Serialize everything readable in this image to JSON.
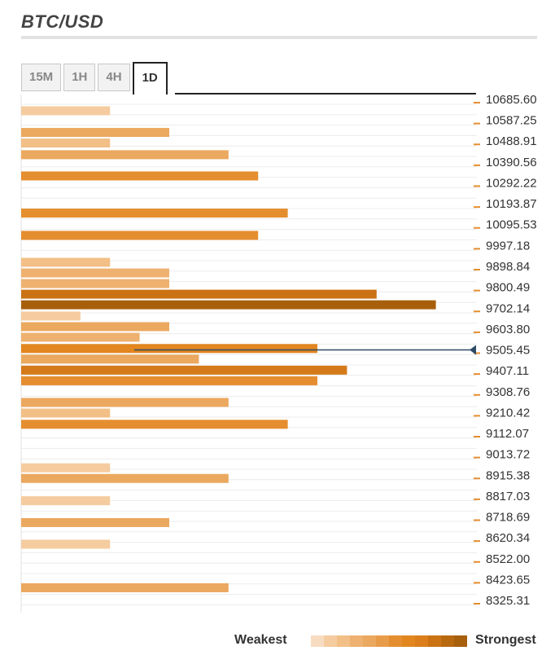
{
  "title": "BTC/USD",
  "tabs": [
    {
      "label": "15M",
      "active": false
    },
    {
      "label": "1H",
      "active": false
    },
    {
      "label": "4H",
      "active": false
    },
    {
      "label": "1D",
      "active": true
    }
  ],
  "legend": {
    "weak_label": "Weakest",
    "strong_label": "Strongest",
    "scale_colors": [
      "#f8dcc2",
      "#f5cc9f",
      "#f2bf86",
      "#eeb170",
      "#eba85f",
      "#e89c49",
      "#e58e2f",
      "#e2861f",
      "#dc7e1c",
      "#cb7214",
      "#b8680f",
      "#a85f0c"
    ]
  },
  "chart_data": {
    "type": "bar",
    "orientation": "horizontal",
    "y_axis": {
      "position": "right",
      "min": 8325.31,
      "max": 10685.6,
      "tick_labels": [
        "10685.60",
        "10587.25",
        "10488.91",
        "10390.56",
        "10292.22",
        "10193.87",
        "10095.53",
        "9997.18",
        "9898.84",
        "9800.49",
        "9702.14",
        "9603.80",
        "9505.45",
        "9407.11",
        "9308.76",
        "9210.42",
        "9112.07",
        "9013.72",
        "8915.38",
        "8817.03",
        "8718.69",
        "8620.34",
        "8522.00",
        "8423.65",
        "8325.31"
      ]
    },
    "current_price": 9505.45,
    "value_scale": [
      0,
      16
    ],
    "bars": [
      {
        "price": 10632,
        "strength": 3,
        "color": "#f5cc9f"
      },
      {
        "price": 10530,
        "strength": 5,
        "color": "#eba85f"
      },
      {
        "price": 10480,
        "strength": 3,
        "color": "#f2bf86"
      },
      {
        "price": 10425,
        "strength": 7,
        "color": "#eba85f"
      },
      {
        "price": 10325,
        "strength": 8,
        "color": "#e58e2f"
      },
      {
        "price": 10150,
        "strength": 9,
        "color": "#e58e2f"
      },
      {
        "price": 10045,
        "strength": 8,
        "color": "#e58e2f"
      },
      {
        "price": 9918,
        "strength": 3,
        "color": "#f2bf86"
      },
      {
        "price": 9868,
        "strength": 5,
        "color": "#eeb170"
      },
      {
        "price": 9818,
        "strength": 5,
        "color": "#eeb170"
      },
      {
        "price": 9768,
        "strength": 12,
        "color": "#cb7214"
      },
      {
        "price": 9718,
        "strength": 14,
        "color": "#a85f0c"
      },
      {
        "price": 9665,
        "strength": 2,
        "color": "#f5cc9f"
      },
      {
        "price": 9615,
        "strength": 5,
        "color": "#eba85f"
      },
      {
        "price": 9565,
        "strength": 4,
        "color": "#eeb170"
      },
      {
        "price": 9512,
        "strength": 10,
        "color": "#e2861f"
      },
      {
        "price": 9462,
        "strength": 6,
        "color": "#eba85f"
      },
      {
        "price": 9410,
        "strength": 11,
        "color": "#d57a1a"
      },
      {
        "price": 9360,
        "strength": 10,
        "color": "#e58e2f"
      },
      {
        "price": 9258,
        "strength": 7,
        "color": "#eba85f"
      },
      {
        "price": 9208,
        "strength": 3,
        "color": "#f2bf86"
      },
      {
        "price": 9155,
        "strength": 9,
        "color": "#e58e2f"
      },
      {
        "price": 8950,
        "strength": 3,
        "color": "#f5cc9f"
      },
      {
        "price": 8900,
        "strength": 7,
        "color": "#eba85f"
      },
      {
        "price": 8795,
        "strength": 3,
        "color": "#f5cc9f"
      },
      {
        "price": 8692,
        "strength": 5,
        "color": "#eba85f"
      },
      {
        "price": 8590,
        "strength": 3,
        "color": "#f5cc9f"
      },
      {
        "price": 8385,
        "strength": 7,
        "color": "#eba85f"
      }
    ]
  }
}
